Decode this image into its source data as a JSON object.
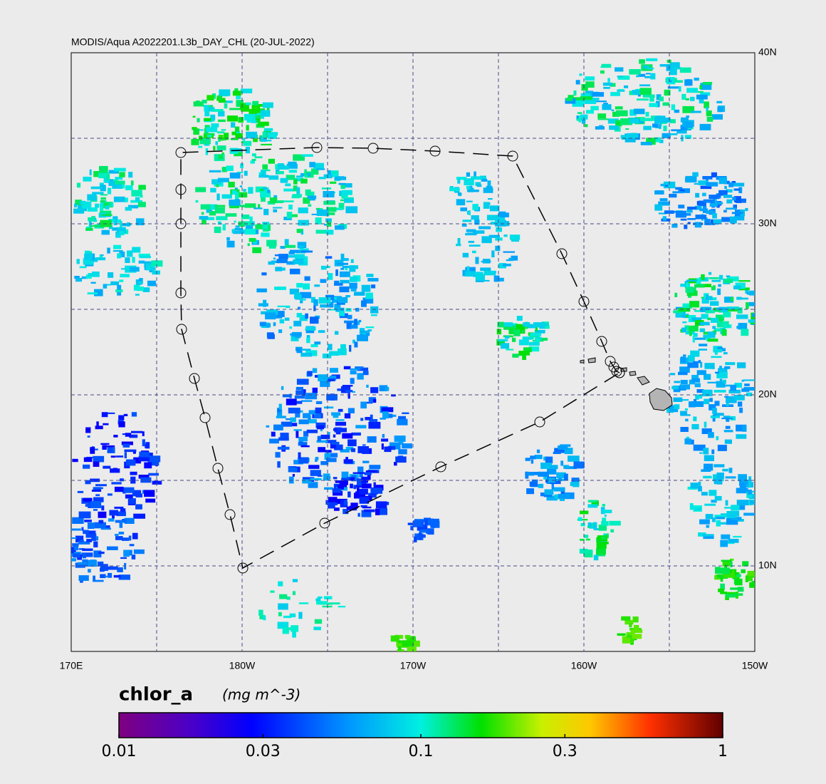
{
  "chart_data": {
    "type": "map",
    "title": "MODIS/Aqua A2022201.L3b_DAY_CHL (20-JUL-2022)",
    "xlim": [
      170,
      210
    ],
    "ylim": [
      5,
      40
    ],
    "xticks": [
      {
        "value": 170,
        "label": "170E"
      },
      {
        "value": 180,
        "label": "180W"
      },
      {
        "value": 190,
        "label": "170W"
      },
      {
        "value": 200,
        "label": "160W"
      },
      {
        "value": 210,
        "label": "150W"
      }
    ],
    "yticks": [
      {
        "value": 10,
        "label": "10N"
      },
      {
        "value": 20,
        "label": "20N"
      },
      {
        "value": 30,
        "label": "30N"
      },
      {
        "value": 40,
        "label": "40N"
      }
    ],
    "grid": true,
    "colorbar": {
      "label": "chlor_a",
      "units": "(mg m^-3)",
      "log": true,
      "lim": [
        0.01,
        1
      ],
      "ticks": [
        0.01,
        0.03,
        0.1,
        0.3,
        1
      ]
    }
  }
}
